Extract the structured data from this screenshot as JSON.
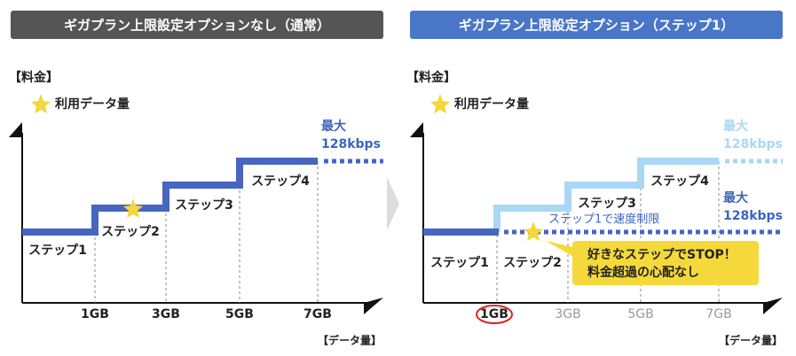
{
  "left": {
    "header": "ギガプラン上限設定オプションなし（通常）",
    "price_label": "【料金】",
    "legend": "利用データ量",
    "step_labels": [
      "ステップ1",
      "ステップ2",
      "ステップ3",
      "ステップ4"
    ],
    "max_label": [
      "最大",
      "128kbps"
    ],
    "x_labels": [
      "1GB",
      "3GB",
      "5GB",
      "7GB"
    ],
    "x_axis_label": "【データ量】"
  },
  "right": {
    "header": "ギガプラン上限設定オプション（ステップ1）",
    "price_label": "【料金】",
    "legend": "利用データ量",
    "step_labels": [
      "ステップ1",
      "ステップ2",
      "ステップ3",
      "ステップ4"
    ],
    "max_label_top": [
      "最大",
      "128kbps"
    ],
    "max_label": [
      "最大",
      "128kbps"
    ],
    "speed_limit": "ステップ1で速度制限",
    "callout": [
      "好きなステップでSTOP！",
      "料金超過の心配なし"
    ],
    "x_labels": [
      "1GB",
      "3GB",
      "5GB",
      "7GB"
    ],
    "x_axis_label": "【データ量】"
  }
}
